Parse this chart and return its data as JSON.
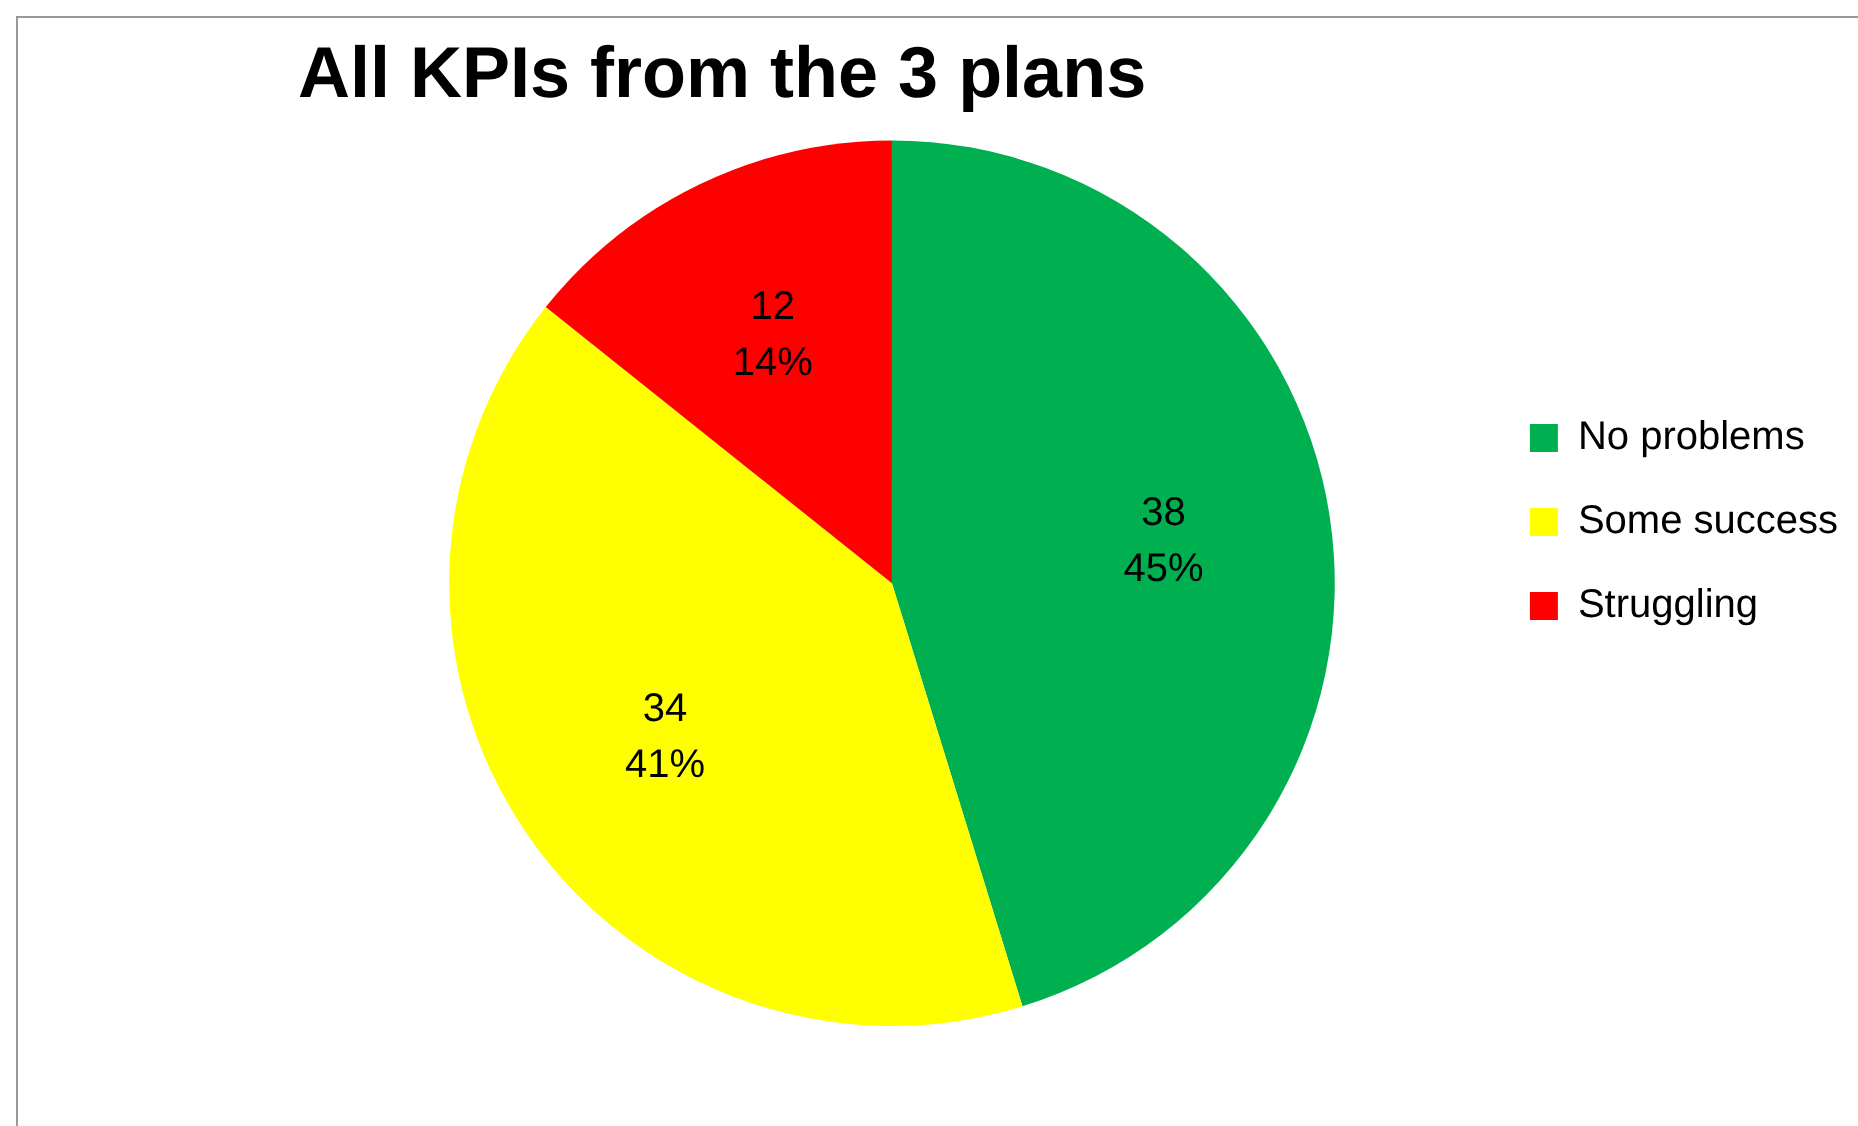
{
  "chart_data": {
    "type": "pie",
    "title": "All KPIs from the 3 plans",
    "categories": [
      "No problems",
      "Some success",
      "Struggling"
    ],
    "values": [
      38,
      34,
      12
    ],
    "colors": [
      "#00b050",
      "#ffff00",
      "#ff0000"
    ],
    "value_labels": [
      "38\n45%",
      "34\n41%",
      "12\n14%"
    ],
    "legend": "right"
  }
}
